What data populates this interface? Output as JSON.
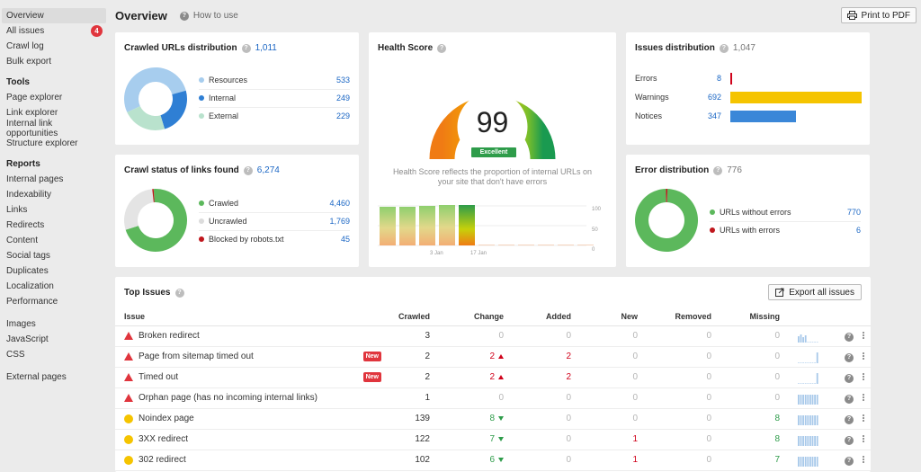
{
  "sidebar": {
    "overview": "Overview",
    "all_issues": "All issues",
    "all_issues_count": "4",
    "crawl_log": "Crawl log",
    "bulk_export": "Bulk export",
    "tools_heading": "Tools",
    "tools": [
      "Page explorer",
      "Link explorer",
      "Internal link opportunities",
      "Structure explorer"
    ],
    "reports_heading": "Reports",
    "reports": [
      "Internal pages",
      "Indexability",
      "Links",
      "Redirects",
      "Content",
      "Social tags",
      "Duplicates",
      "Localization",
      "Performance"
    ],
    "assets": [
      "Images",
      "JavaScript",
      "CSS"
    ],
    "external": "External pages"
  },
  "header": {
    "title": "Overview",
    "how_to_use": "How to use",
    "print_label": "Print to PDF"
  },
  "crawled_urls": {
    "title": "Crawled URLs distribution",
    "total": "1,011",
    "items": [
      {
        "label": "Resources",
        "value": "533",
        "color": "#a7cdee"
      },
      {
        "label": "Internal",
        "value": "249",
        "color": "#2f7fd4"
      },
      {
        "label": "External",
        "value": "229",
        "color": "#b9e2cd"
      }
    ]
  },
  "crawl_status": {
    "title": "Crawl status of links found",
    "total": "6,274",
    "items": [
      {
        "label": "Crawled",
        "value": "4,460",
        "color": "#5cb85c"
      },
      {
        "label": "Uncrawled",
        "value": "1,769",
        "color": "#e4e4e4"
      },
      {
        "label": "Blocked by robots.txt",
        "value": "45",
        "color": "#c0171d"
      }
    ]
  },
  "health": {
    "title": "Health Score",
    "score": "99",
    "rating": "Excellent",
    "description": "Health Score reflects the proportion of internal URLs on your site that don't have errors",
    "y_ticks": [
      "100",
      "50",
      "0"
    ],
    "x_ticks": [
      "3 Jan",
      "17 Jan"
    ]
  },
  "issues_dist": {
    "title": "Issues distribution",
    "total": "1,047",
    "items": [
      {
        "label": "Errors",
        "value": "8",
        "color": "#d0021b"
      },
      {
        "label": "Warnings",
        "value": "692",
        "color": "#f5c400"
      },
      {
        "label": "Notices",
        "value": "347",
        "color": "#3a87d8"
      }
    ]
  },
  "error_dist": {
    "title": "Error distribution",
    "total": "776",
    "items": [
      {
        "label": "URLs without errors",
        "value": "770",
        "color": "#5cb85c"
      },
      {
        "label": "URLs with errors",
        "value": "6",
        "color": "#c0171d"
      }
    ]
  },
  "top_issues": {
    "title": "Top Issues",
    "export_label": "Export all issues",
    "columns": [
      "Issue",
      "Crawled",
      "Change",
      "Added",
      "New",
      "Removed",
      "Missing"
    ],
    "new_label": "New",
    "rows": [
      {
        "name": "Broken redirect",
        "sev": "error",
        "is_new": false,
        "crawled": "3",
        "change": "0",
        "change_dir": "",
        "added": "0",
        "new": "0",
        "removed": "0",
        "missing": "0"
      },
      {
        "name": "Page from sitemap timed out",
        "sev": "error",
        "is_new": true,
        "crawled": "2",
        "change": "2",
        "change_dir": "up",
        "added": "2",
        "new": "0",
        "removed": "0",
        "missing": "0"
      },
      {
        "name": "Timed out",
        "sev": "error",
        "is_new": true,
        "crawled": "2",
        "change": "2",
        "change_dir": "up",
        "added": "2",
        "new": "0",
        "removed": "0",
        "missing": "0"
      },
      {
        "name": "Orphan page (has no incoming internal links)",
        "sev": "error",
        "is_new": false,
        "crawled": "1",
        "change": "0",
        "change_dir": "",
        "added": "0",
        "new": "0",
        "removed": "0",
        "missing": "0"
      },
      {
        "name": "Noindex page",
        "sev": "warning",
        "is_new": false,
        "crawled": "139",
        "change": "8",
        "change_dir": "down",
        "added": "0",
        "new": "0",
        "removed": "0",
        "missing": "8"
      },
      {
        "name": "3XX redirect",
        "sev": "warning",
        "is_new": false,
        "crawled": "122",
        "change": "7",
        "change_dir": "down",
        "added": "0",
        "new": "1",
        "removed": "0",
        "missing": "8"
      },
      {
        "name": "302 redirect",
        "sev": "warning",
        "is_new": false,
        "crawled": "102",
        "change": "6",
        "change_dir": "down",
        "added": "0",
        "new": "1",
        "removed": "0",
        "missing": "7"
      }
    ]
  }
}
